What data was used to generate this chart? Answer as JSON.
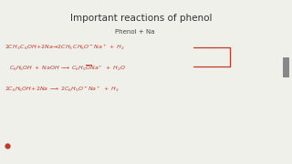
{
  "title": "Important reactions of phenol",
  "subtitle": "Phenol + Na",
  "bg_color": "#f0f0eb",
  "title_color": "#333333",
  "subtitle_color": "#444444",
  "reaction_color": "#c0392b",
  "bullet_color": "#c0392b",
  "scrollbar_color": "#888888",
  "figsize": [
    3.2,
    1.8
  ],
  "dpi": 100,
  "title_fontsize": 7.5,
  "subtitle_fontsize": 5.0,
  "eq_fontsize": 4.5
}
